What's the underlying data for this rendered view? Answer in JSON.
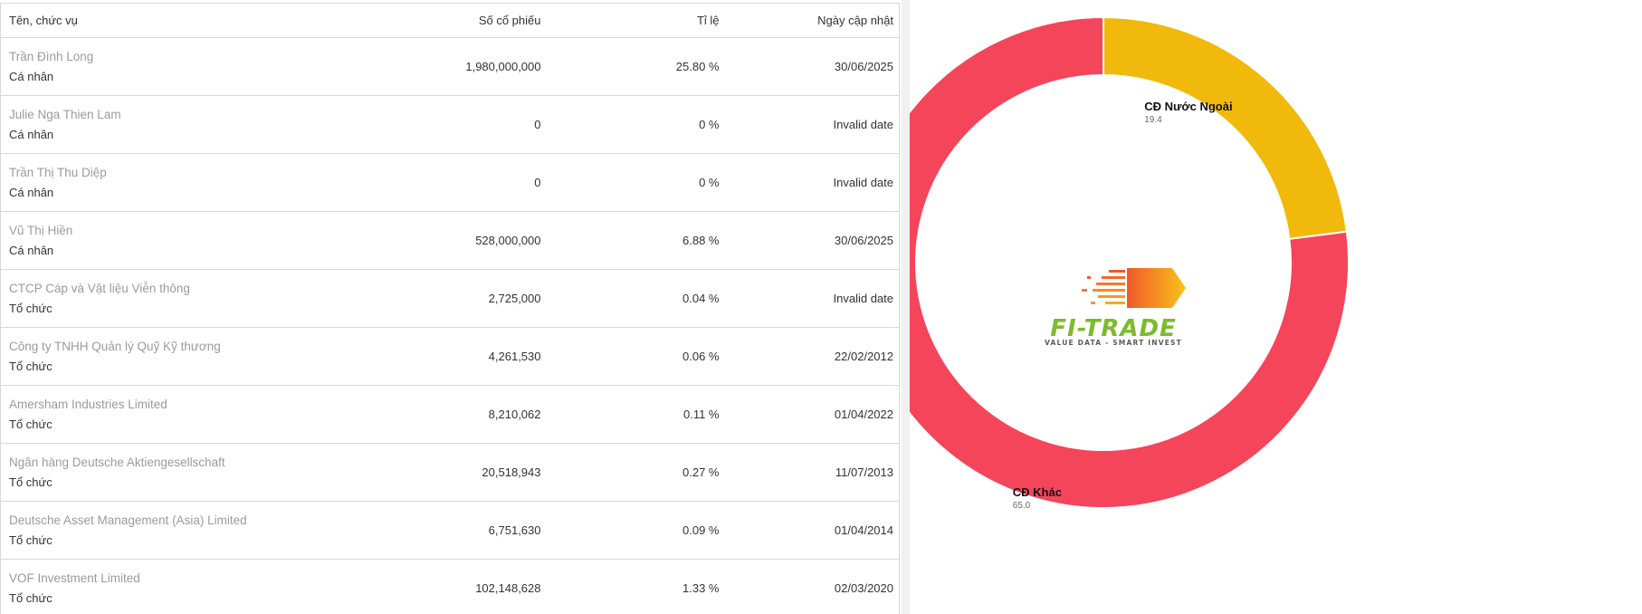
{
  "table": {
    "headers": {
      "name": "Tên, chức vụ",
      "shares": "Số cổ phiếu",
      "ratio": "Tỉ lệ",
      "date": "Ngày cập nhật"
    },
    "rows": [
      {
        "name": "Trần Đình Long",
        "type": "Cá nhân",
        "shares": "1,980,000,000",
        "ratio": "25.80 %",
        "date": "30/06/2025"
      },
      {
        "name": "Julie Nga Thien Lam",
        "type": "Cá nhân",
        "shares": "0",
        "ratio": "0 %",
        "date": "Invalid date"
      },
      {
        "name": "Trần Thị Thu Diệp",
        "type": "Cá nhân",
        "shares": "0",
        "ratio": "0 %",
        "date": "Invalid date"
      },
      {
        "name": "Vũ Thị Hiền",
        "type": "Cá nhân",
        "shares": "528,000,000",
        "ratio": "6.88 %",
        "date": "30/06/2025"
      },
      {
        "name": "CTCP Cáp và Vật liệu Viễn thông",
        "type": "Tổ chức",
        "shares": "2,725,000",
        "ratio": "0.04 %",
        "date": "Invalid date"
      },
      {
        "name": "Công ty TNHH Quản lý Quỹ Kỹ thương",
        "type": "Tổ chức",
        "shares": "4,261,530",
        "ratio": "0.06 %",
        "date": "22/02/2012"
      },
      {
        "name": "Amersham Industries Limited",
        "type": "Tổ chức",
        "shares": "8,210,062",
        "ratio": "0.11 %",
        "date": "01/04/2022"
      },
      {
        "name": "Ngân hàng Deutsche Aktiengesellschaft",
        "type": "Tổ chức",
        "shares": "20,518,943",
        "ratio": "0.27 %",
        "date": "11/07/2013"
      },
      {
        "name": "Deutsche Asset Management (Asia) Limited",
        "type": "Tổ chức",
        "shares": "6,751,630",
        "ratio": "0.09 %",
        "date": "01/04/2014"
      },
      {
        "name": "VOF Investment Limited",
        "type": "Tổ chức",
        "shares": "102,148,628",
        "ratio": "1.33 %",
        "date": "02/03/2020"
      }
    ]
  },
  "chart_data": {
    "type": "pie",
    "style": "donut",
    "series": [
      {
        "name": "CĐ Nước Ngoài",
        "value": 19.4,
        "value_label": "19.4",
        "color": "#f0b90c"
      },
      {
        "name": "CĐ Khác",
        "value": 65.0,
        "value_label": "65.0",
        "color": "#f4455b"
      }
    ],
    "background": "#ffffff"
  },
  "logo": {
    "name": "FI-TRADE",
    "tagline": "VALUE DATA - SMART INVEST",
    "colors": {
      "text": "#7dbb2c",
      "arrow_start": "#f05a28",
      "arrow_end": "#f9c21b"
    }
  },
  "colors": {
    "border": "#d8d8d8",
    "name_text": "#9b9b9b",
    "body_text": "#333333"
  }
}
